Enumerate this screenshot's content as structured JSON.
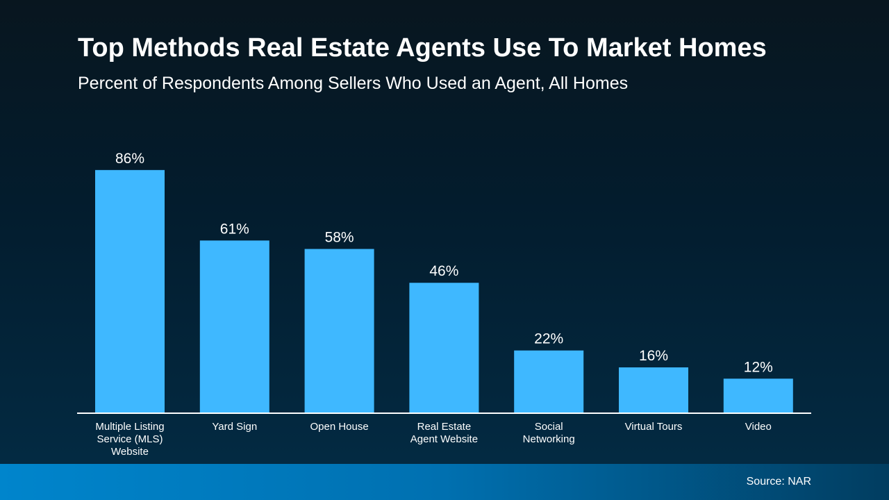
{
  "chart_data": {
    "type": "bar",
    "title": "Top Methods Real Estate Agents Use To Market Homes",
    "subtitle": "Percent of Respondents Among Sellers Who Used an Agent, All Homes",
    "categories": [
      [
        "Multiple Listing",
        "Service (MLS)",
        "Website"
      ],
      [
        "Yard Sign"
      ],
      [
        "Open House"
      ],
      [
        "Real Estate",
        "Agent Website"
      ],
      [
        "Social",
        "Networking"
      ],
      [
        "Virtual Tours"
      ],
      [
        "Video"
      ]
    ],
    "values": [
      86,
      61,
      58,
      46,
      22,
      16,
      12
    ],
    "data_labels": [
      "86%",
      "61%",
      "58%",
      "46%",
      "22%",
      "16%",
      "12%"
    ],
    "ylim": [
      0,
      100
    ],
    "grid": false,
    "bar_color": "#3fb8ff"
  },
  "footer": {
    "source": "Source: NAR"
  }
}
